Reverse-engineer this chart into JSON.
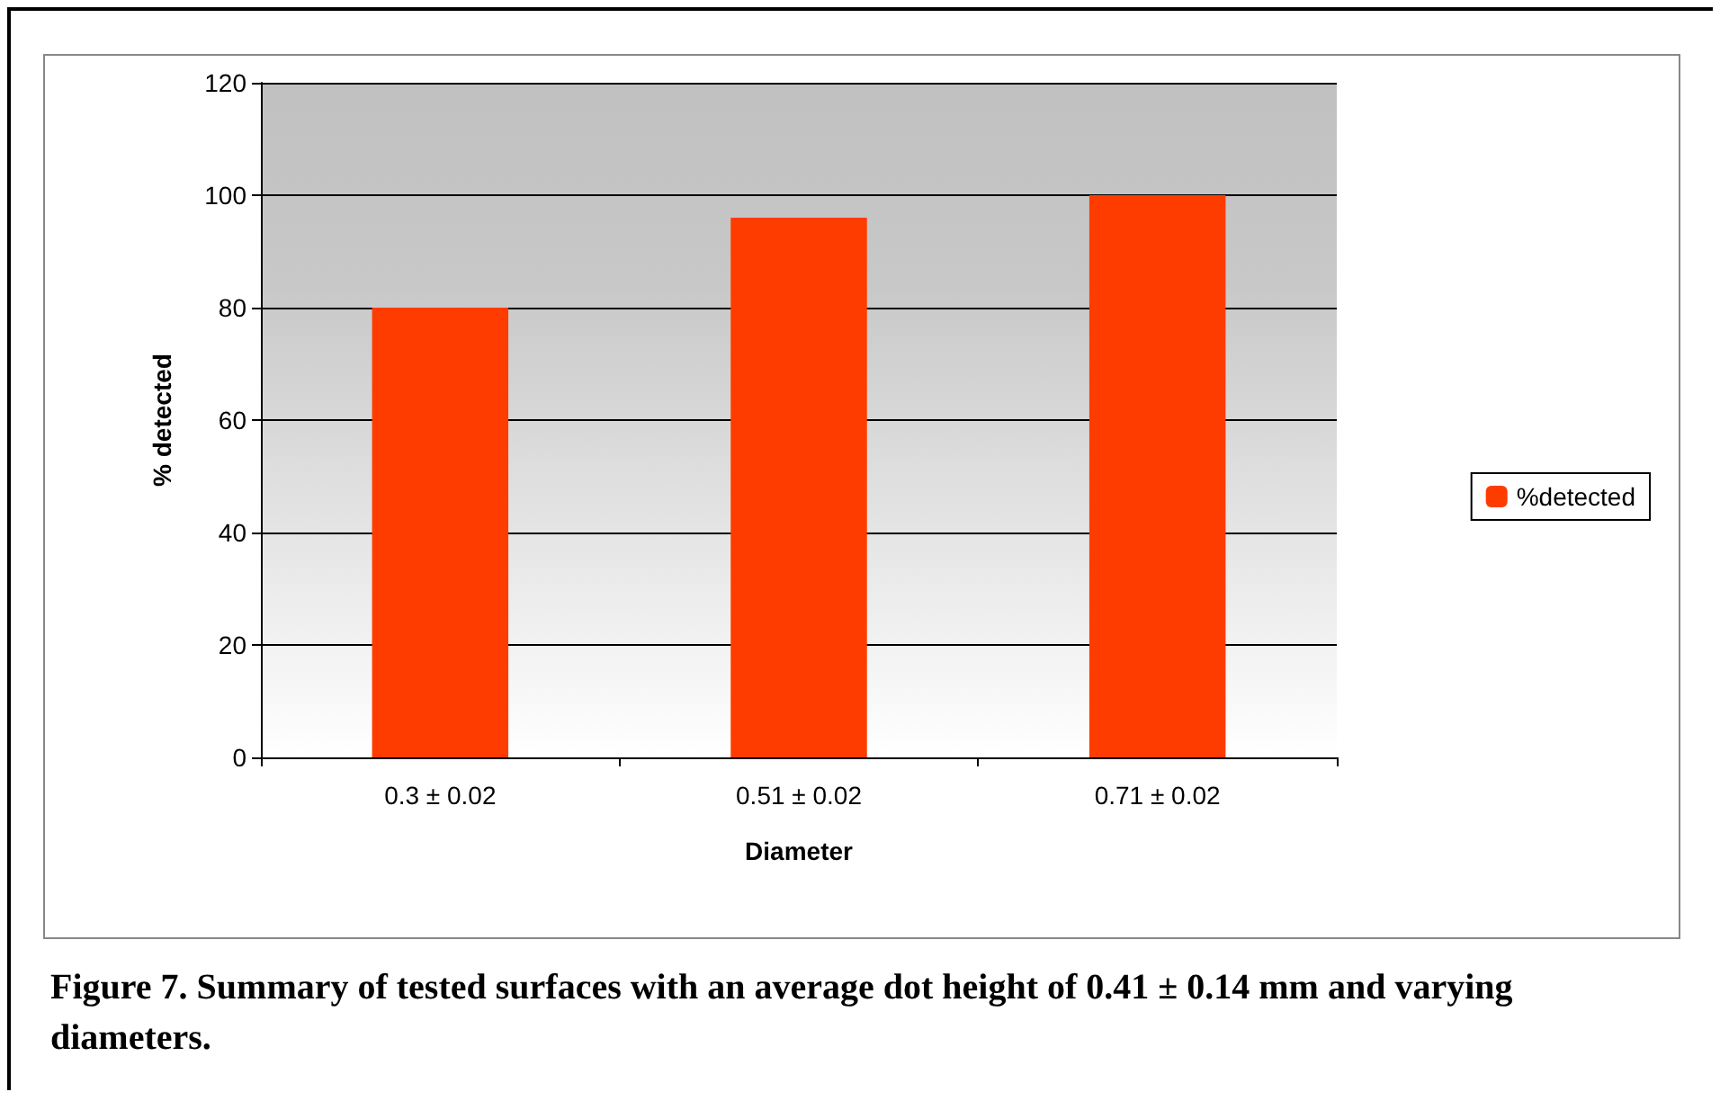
{
  "chart_data": {
    "type": "bar",
    "xlabel": "Diameter",
    "ylabel": "% detected",
    "categories": [
      "0.3 ± 0.02",
      "0.51 ± 0.02",
      "0.71 ± 0.02"
    ],
    "series": [
      {
        "name": "%detected",
        "color": "#ff3c00",
        "values": [
          80,
          96,
          100
        ]
      }
    ],
    "ylim": [
      0,
      120
    ],
    "yticks": [
      0,
      20,
      40,
      60,
      80,
      100,
      120
    ],
    "grid": "y",
    "legend": "right",
    "annotations": [
      "Figure 7. Summary of tested surfaces with an average dot height of 0.41 ± 0.14 mm and varying diameters."
    ]
  }
}
